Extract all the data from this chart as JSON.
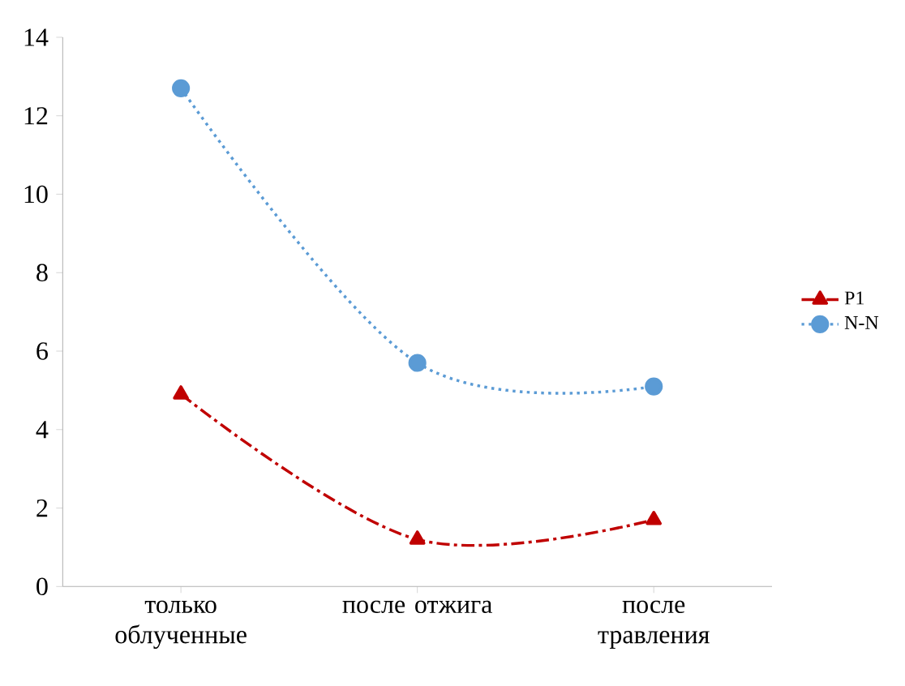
{
  "chart_data": {
    "type": "line",
    "categories": [
      "только облученные",
      "после отжига",
      "после травления"
    ],
    "series": [
      {
        "name": "P1",
        "color": "#c00000",
        "values": [
          4.9,
          1.2,
          1.7
        ],
        "marker": "triangle",
        "line_style": "dashdot"
      },
      {
        "name": "N-N",
        "color": "#5b9bd5",
        "values": [
          12.7,
          5.7,
          5.1
        ],
        "marker": "circle",
        "line_style": "dotted"
      }
    ],
    "ylim": [
      0,
      14
    ],
    "yticks": [
      0,
      2,
      4,
      6,
      8,
      10,
      12,
      14
    ],
    "grid": false,
    "legend": "right"
  }
}
